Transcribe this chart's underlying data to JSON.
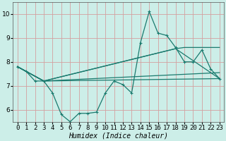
{
  "xlabel": "Humidex (Indice chaleur)",
  "bg_color": "#cceee8",
  "line_color": "#1a7a6e",
  "xlim": [
    -0.5,
    23.5
  ],
  "ylim": [
    5.5,
    10.5
  ],
  "yticks": [
    6,
    7,
    8,
    9,
    10
  ],
  "xticks": [
    0,
    1,
    2,
    3,
    4,
    5,
    6,
    7,
    8,
    9,
    10,
    11,
    12,
    13,
    14,
    15,
    16,
    17,
    18,
    19,
    20,
    21,
    22,
    23
  ],
  "jagged_x": [
    0,
    1,
    2,
    3,
    4,
    5,
    6,
    7,
    8,
    9,
    10,
    11,
    12,
    13,
    14,
    15,
    16,
    17,
    18,
    19,
    20,
    21,
    22,
    23
  ],
  "jagged_y": [
    7.8,
    7.6,
    7.2,
    7.2,
    6.7,
    5.8,
    5.5,
    5.85,
    5.85,
    5.9,
    6.7,
    7.2,
    7.05,
    6.7,
    8.8,
    10.1,
    9.2,
    9.1,
    8.6,
    8.0,
    8.0,
    8.5,
    7.7,
    7.3
  ],
  "trend_lines": [
    {
      "x": [
        0,
        3,
        23
      ],
      "y": [
        7.8,
        7.2,
        7.3
      ]
    },
    {
      "x": [
        0,
        3,
        23
      ],
      "y": [
        7.8,
        7.2,
        7.55
      ]
    },
    {
      "x": [
        0,
        3,
        18,
        23
      ],
      "y": [
        7.8,
        7.2,
        8.55,
        7.3
      ]
    },
    {
      "x": [
        0,
        3,
        18,
        19,
        23
      ],
      "y": [
        7.8,
        7.2,
        8.55,
        8.6,
        8.6
      ]
    }
  ],
  "line_width": 0.9,
  "marker": "+",
  "marker_size": 3.5,
  "xlabel_fontsize": 7,
  "tick_fontsize": 6.5,
  "grid_color": "#d4a0a0"
}
